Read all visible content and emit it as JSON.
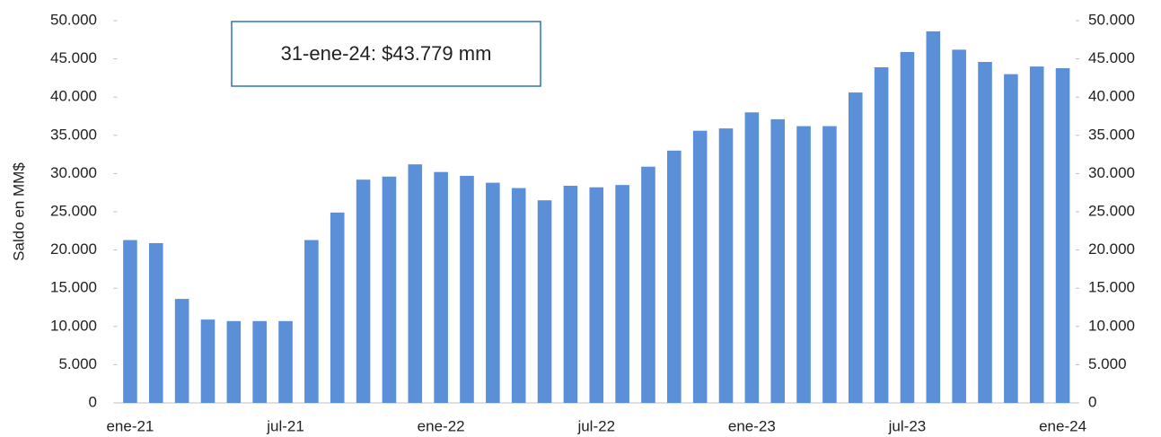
{
  "chart_data": {
    "type": "bar",
    "y_axis_label": "Saldo en MM$",
    "annotation": "31-ene-24: $43.779 mm",
    "color": "#5b8fd8",
    "categories": [
      "ene-21",
      null,
      null,
      null,
      null,
      null,
      "jul-21",
      null,
      null,
      null,
      null,
      null,
      "ene-22",
      null,
      null,
      null,
      null,
      null,
      "jul-22",
      null,
      null,
      null,
      null,
      null,
      "ene-23",
      null,
      null,
      null,
      null,
      null,
      "jul-23",
      null,
      null,
      null,
      null,
      null,
      "ene-24"
    ],
    "values": [
      21300,
      20900,
      13600,
      10900,
      10700,
      10700,
      10700,
      21300,
      24900,
      29200,
      29600,
      31200,
      30200,
      29700,
      28800,
      28100,
      26500,
      28400,
      28200,
      28500,
      30900,
      33000,
      35600,
      35900,
      38000,
      37100,
      36200,
      36200,
      40600,
      43900,
      45900,
      48600,
      46200,
      44600,
      43000,
      44000,
      43779
    ],
    "ylim": [
      0,
      50000
    ],
    "yticks": [
      0,
      {
        "value": 5000,
        "label": "5.000"
      },
      {
        "value": 10000,
        "label": "10.000"
      },
      {
        "value": 15000,
        "label": "15.000"
      },
      {
        "value": 20000,
        "label": "20.000"
      },
      {
        "value": 25000,
        "label": "25.000"
      },
      {
        "value": 30000,
        "label": "30.000"
      },
      {
        "value": 35000,
        "label": "35.000"
      },
      {
        "value": 40000,
        "label": "40.000"
      },
      {
        "value": 45000,
        "label": "45.000"
      },
      {
        "value": 50000,
        "label": "50.000"
      }
    ],
    "y2lim": [
      0,
      50000
    ],
    "y2ticks": [
      0,
      {
        "value": 5000,
        "label": "5.000"
      },
      {
        "value": 10000,
        "label": "10.000"
      },
      {
        "value": 15000,
        "label": "15.000"
      },
      {
        "value": 20000,
        "label": "20.000"
      },
      {
        "value": 25000,
        "label": "25.000"
      },
      {
        "value": 30000,
        "label": "30.000"
      },
      {
        "value": 35000,
        "label": "35.000"
      },
      {
        "value": 40000,
        "label": "40.000"
      },
      {
        "value": 45000,
        "label": "45.000"
      },
      {
        "value": 50000,
        "label": "50.000"
      }
    ],
    "grid": false
  }
}
